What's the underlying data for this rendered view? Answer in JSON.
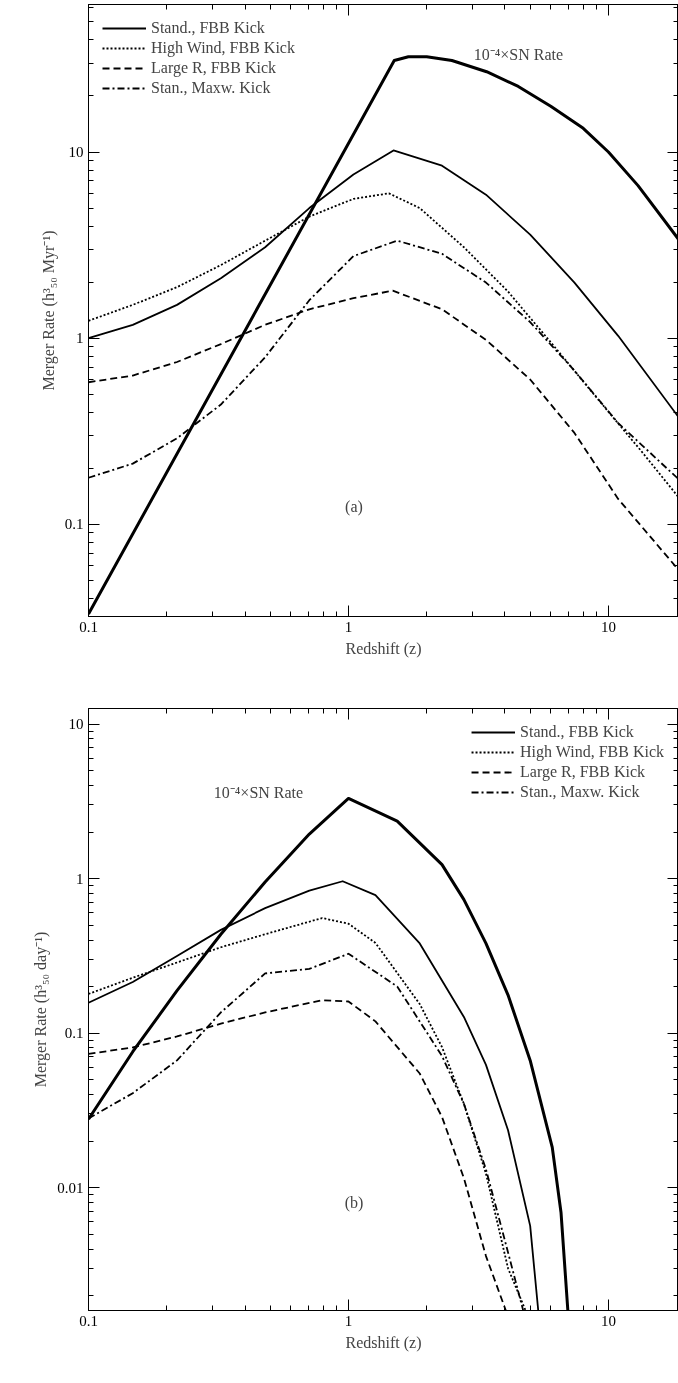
{
  "chart_data": [
    {
      "type": "line",
      "xlabel": "Redshift (z)",
      "ylabel": "Merger Rate (h³₅₀ Myr⁻¹)",
      "log": "xy",
      "xlim": [
        0.1,
        18.6
      ],
      "ylim": [
        0.032,
        62
      ],
      "xticks": [
        0.1,
        1,
        10
      ],
      "yticks": [
        0.1,
        1,
        10
      ],
      "grid": false,
      "legend": "top left",
      "series": [
        {
          "color": "#000000",
          "line_style": "solid",
          "x": [
            0.1,
            1.5,
            1.7,
            2,
            2.5,
            3.4,
            4.5,
            6,
            8,
            10,
            13,
            18.6
          ],
          "values": [
            0.033,
            31,
            32.5,
            32.5,
            31,
            27,
            22.5,
            17.6,
            13.4,
            10,
            6.6,
            3.4
          ]
        },
        {
          "name": "Stand., FBB Kick",
          "color": "#000000",
          "line_style": "solid",
          "x": [
            0.1,
            0.148,
            0.219,
            0.323,
            0.478,
            0.707,
            1.045,
            1.49,
            2.29,
            3.38,
            5.0,
            7.4,
            10.9,
            18.6
          ],
          "values": [
            1.0,
            1.18,
            1.51,
            2.1,
            3.08,
            5.0,
            7.57,
            10.2,
            8.45,
            5.9,
            3.6,
            1.99,
            1.03,
            0.377
          ]
        },
        {
          "name": "High Wind, FBB Kick",
          "color": "#000000",
          "line_style": "dotted",
          "x": [
            0.1,
            0.148,
            0.219,
            0.323,
            0.478,
            0.707,
            1.045,
            1.43,
            1.88,
            2.78,
            4.11,
            6.08,
            9.0,
            13.3,
            18.6
          ],
          "values": [
            1.24,
            1.51,
            1.88,
            2.47,
            3.34,
            4.5,
            5.6,
            6.0,
            5.0,
            3.08,
            1.78,
            0.93,
            0.48,
            0.25,
            0.14
          ]
        },
        {
          "name": "Large R, FBB Kick",
          "color": "#000000",
          "line_style": "dashed",
          "x": [
            0.1,
            0.148,
            0.219,
            0.323,
            0.478,
            0.707,
            1.045,
            1.48,
            2.29,
            3.38,
            5.0,
            7.4,
            10.9,
            18.6
          ],
          "values": [
            0.58,
            0.63,
            0.745,
            0.93,
            1.18,
            1.43,
            1.64,
            1.8,
            1.43,
            0.98,
            0.6,
            0.31,
            0.137,
            0.057
          ]
        },
        {
          "name": "Stan., Maxw. Kick",
          "color": "#000000",
          "line_style": "dashdot",
          "x": [
            0.1,
            0.148,
            0.219,
            0.323,
            0.478,
            0.707,
            1.045,
            1.54,
            2.29,
            3.38,
            5.0,
            7.4,
            10.9,
            18.6
          ],
          "values": [
            0.178,
            0.212,
            0.29,
            0.44,
            0.79,
            1.6,
            2.76,
            3.34,
            2.84,
            1.99,
            1.22,
            0.67,
            0.35,
            0.175
          ]
        }
      ],
      "annotations": [
        "10⁻⁴×SN Rate",
        "(a)"
      ]
    },
    {
      "type": "line",
      "xlabel": "Redshift (z)",
      "ylabel": "Merger Rate (h³₅₀ day⁻¹)",
      "log": "xy",
      "xlim": [
        0.1,
        18.6
      ],
      "ylim": [
        0.0016,
        12.6
      ],
      "xticks": [
        0.1,
        1,
        10
      ],
      "yticks": [
        0.01,
        0.1,
        1,
        10
      ],
      "grid": false,
      "legend": "top right",
      "series": [
        {
          "color": "#000000",
          "line_style": "solid",
          "x": [
            0.1,
            0.148,
            0.219,
            0.323,
            0.478,
            0.707,
            1.0,
            1.54,
            2.29,
            2.78,
            3.38,
            4.11,
            5.0,
            6.08,
            6.57,
            6.98
          ],
          "values": [
            0.0277,
            0.0757,
            0.188,
            0.436,
            0.95,
            1.94,
            3.3,
            2.35,
            1.23,
            0.73,
            0.38,
            0.176,
            0.0665,
            0.0182,
            0.0069,
            0.0016
          ]
        },
        {
          "name": "Stand., FBB Kick",
          "color": "#000000",
          "line_style": "solid",
          "x": [
            0.1,
            0.148,
            0.219,
            0.323,
            0.478,
            0.707,
            0.95,
            1.27,
            1.88,
            2.78,
            3.38,
            4.11,
            5.0,
            5.37
          ],
          "values": [
            0.157,
            0.214,
            0.315,
            0.465,
            0.643,
            0.834,
            0.96,
            0.78,
            0.38,
            0.127,
            0.0622,
            0.0235,
            0.00565,
            0.0016
          ]
        },
        {
          "name": "High Wind, FBB Kick",
          "color": "#000000",
          "line_style": "dotted",
          "x": [
            0.1,
            0.148,
            0.219,
            0.323,
            0.478,
            0.792,
            1.0,
            1.27,
            1.88,
            2.29,
            2.78,
            3.38,
            4.11,
            4.8
          ],
          "values": [
            0.179,
            0.228,
            0.286,
            0.359,
            0.436,
            0.555,
            0.51,
            0.383,
            0.154,
            0.081,
            0.0348,
            0.0123,
            0.003,
            0.0016
          ]
        },
        {
          "name": "Large R, FBB Kick",
          "color": "#000000",
          "line_style": "dashed",
          "x": [
            0.1,
            0.148,
            0.219,
            0.323,
            0.478,
            0.792,
            1.0,
            1.27,
            1.88,
            2.29,
            2.78,
            3.38,
            4.03
          ],
          "values": [
            0.0733,
            0.0807,
            0.095,
            0.115,
            0.136,
            0.163,
            0.16,
            0.119,
            0.0547,
            0.0286,
            0.0115,
            0.0036,
            0.0016
          ]
        },
        {
          "name": "Stan., Maxw. Kick",
          "color": "#000000",
          "line_style": "dashdot",
          "x": [
            0.1,
            0.148,
            0.219,
            0.323,
            0.478,
            0.707,
            1.0,
            1.54,
            2.29,
            2.78,
            3.38,
            4.11,
            4.7
          ],
          "values": [
            0.028,
            0.0408,
            0.0665,
            0.136,
            0.243,
            0.26,
            0.326,
            0.2,
            0.071,
            0.0348,
            0.0131,
            0.0038,
            0.0016
          ]
        }
      ],
      "annotations": [
        "10⁻⁴×SN Rate",
        "(b)"
      ]
    }
  ]
}
